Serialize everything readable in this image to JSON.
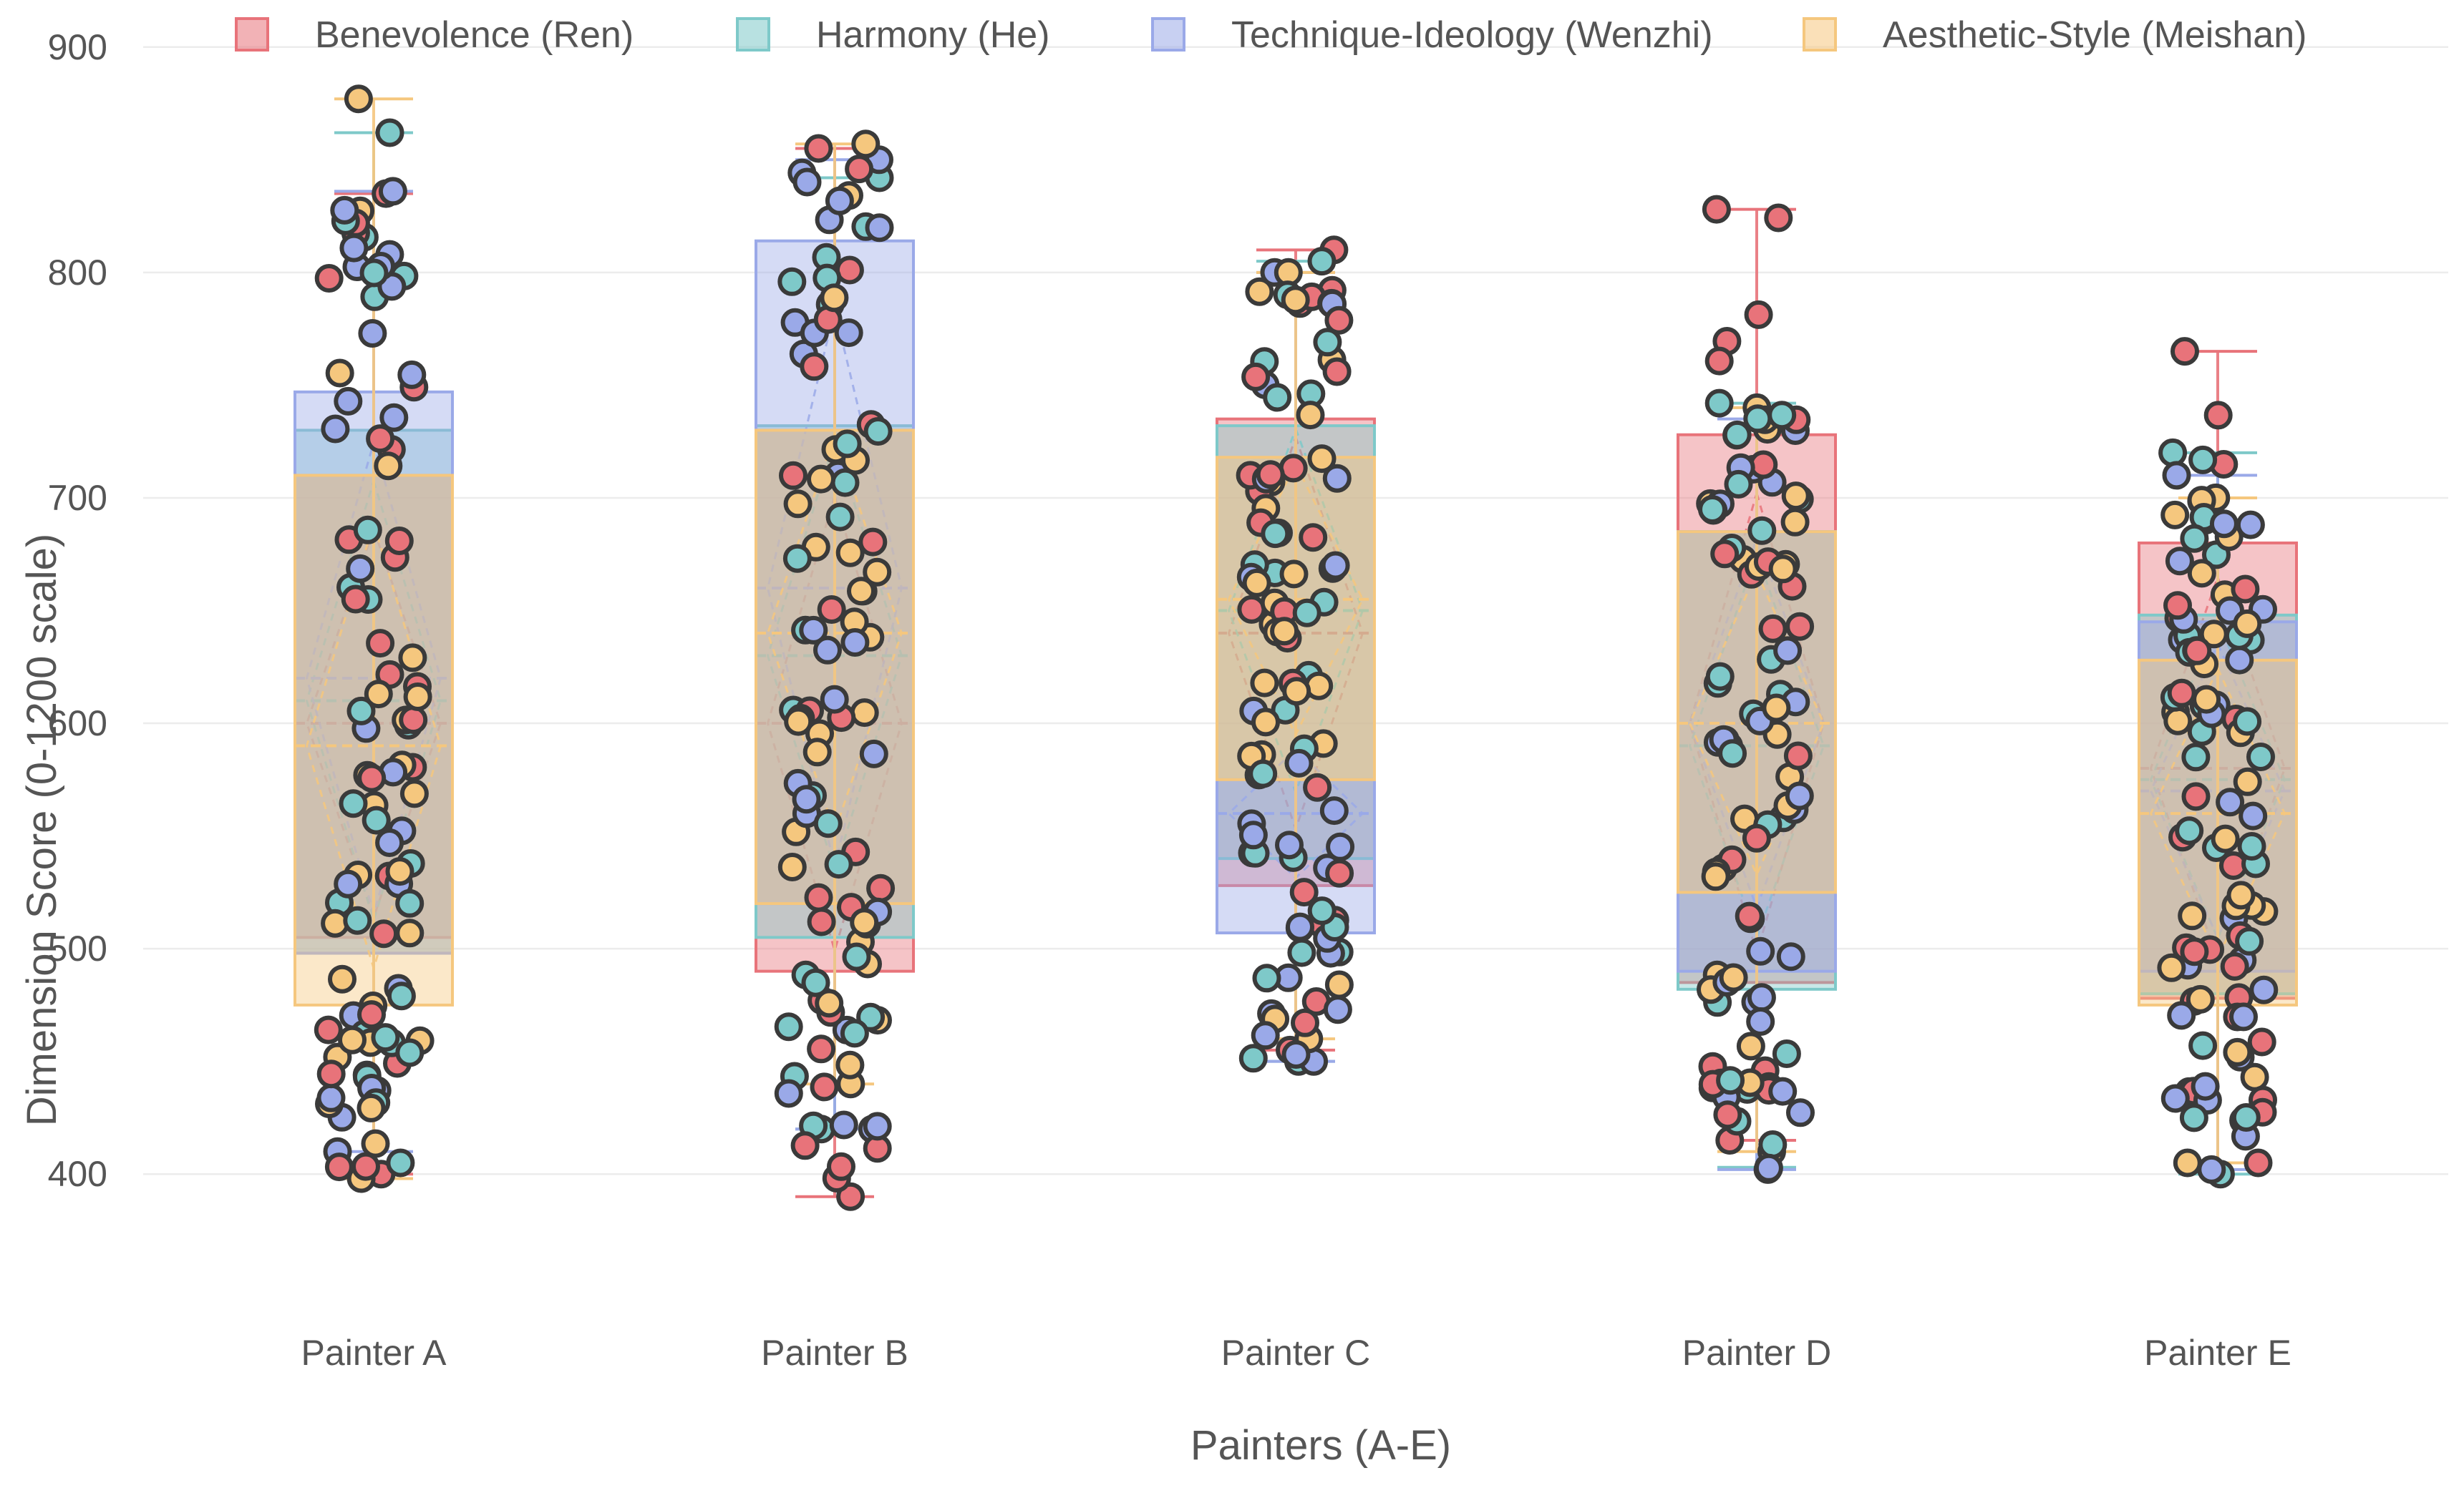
{
  "chart_data": {
    "type": "box",
    "title": "",
    "xlabel": "Painters (A-E)",
    "ylabel": "Dimension Score (0-1200 scale)",
    "ylim": [
      375,
      905
    ],
    "yticks": [
      400,
      500,
      600,
      700,
      800,
      900
    ],
    "grid": true,
    "legend_position": "top",
    "categories": [
      "Painter A",
      "Painter B",
      "Painter C",
      "Painter D",
      "Painter E"
    ],
    "series": [
      {
        "name": "Benevolence (Ren)",
        "color": "#e8737a",
        "boxes": [
          {
            "min": 400,
            "q1": 505,
            "median": 600,
            "q3": 710,
            "max": 835
          },
          {
            "min": 390,
            "q1": 490,
            "median": 600,
            "q3": 730,
            "max": 855
          },
          {
            "min": 455,
            "q1": 528,
            "median": 640,
            "q3": 735,
            "max": 810
          },
          {
            "min": 415,
            "q1": 485,
            "median": 600,
            "q3": 728,
            "max": 828
          },
          {
            "min": 405,
            "q1": 478,
            "median": 580,
            "q3": 680,
            "max": 765
          }
        ]
      },
      {
        "name": "Harmony (He)",
        "color": "#7ec9c9",
        "boxes": [
          {
            "min": 405,
            "q1": 498,
            "median": 610,
            "q3": 730,
            "max": 862
          },
          {
            "min": 420,
            "q1": 505,
            "median": 630,
            "q3": 732,
            "max": 842
          },
          {
            "min": 450,
            "q1": 540,
            "median": 650,
            "q3": 732,
            "max": 805
          },
          {
            "min": 403,
            "q1": 482,
            "median": 590,
            "q3": 685,
            "max": 742
          },
          {
            "min": 400,
            "q1": 480,
            "median": 575,
            "q3": 648,
            "max": 720
          }
        ]
      },
      {
        "name": "Technique-Ideology (Wenzhi)",
        "color": "#9aa9e8",
        "boxes": [
          {
            "min": 410,
            "q1": 498,
            "median": 620,
            "q3": 747,
            "max": 836
          },
          {
            "min": 420,
            "q1": 520,
            "median": 660,
            "q3": 814,
            "max": 850
          },
          {
            "min": 450,
            "q1": 507,
            "median": 560,
            "q3": 575,
            "max": 800
          },
          {
            "min": 402,
            "q1": 490,
            "median": 600,
            "q3": 685,
            "max": 735
          },
          {
            "min": 402,
            "q1": 490,
            "median": 570,
            "q3": 645,
            "max": 710
          }
        ]
      },
      {
        "name": "Aesthetic-Style (Meishan)",
        "color": "#f5c77e",
        "boxes": [
          {
            "min": 398,
            "q1": 475,
            "median": 590,
            "q3": 710,
            "max": 877
          },
          {
            "min": 440,
            "q1": 520,
            "median": 640,
            "q3": 730,
            "max": 857
          },
          {
            "min": 460,
            "q1": 575,
            "median": 655,
            "q3": 718,
            "max": 800
          },
          {
            "min": 410,
            "q1": 525,
            "median": 600,
            "q3": 685,
            "max": 740
          },
          {
            "min": 405,
            "q1": 475,
            "median": 560,
            "q3": 628,
            "max": 700
          }
        ]
      }
    ]
  }
}
